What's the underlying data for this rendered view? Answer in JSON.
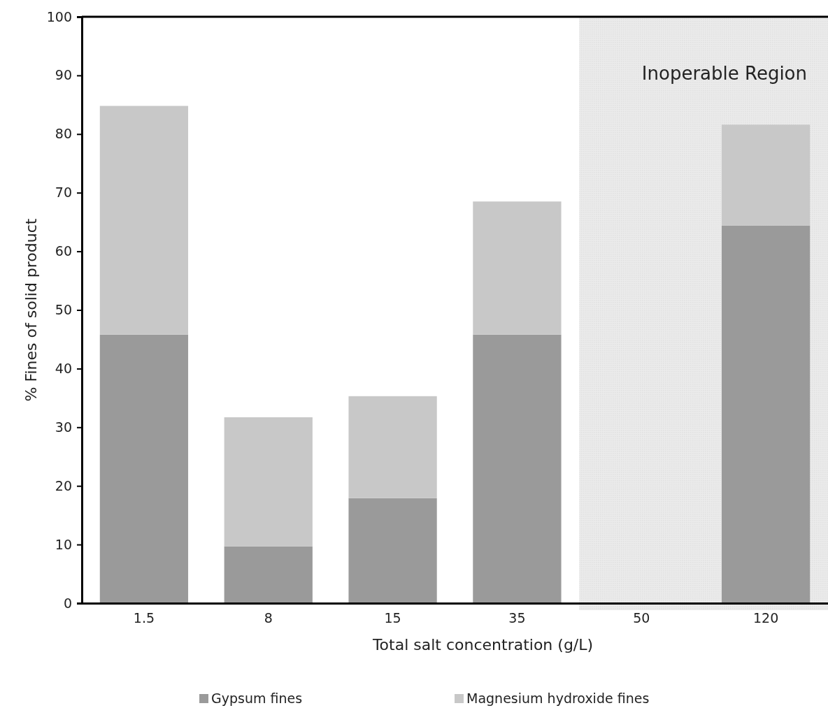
{
  "chart_data": {
    "type": "bar",
    "stacked": true,
    "xlabel": "Total salt concentration (g/L)",
    "ylabel": "% Fines of solid product",
    "categories": [
      "1.5",
      "8",
      "15",
      "35",
      "50",
      "120"
    ],
    "series": [
      {
        "name": "Gypsum fines",
        "color": "#9a9a9a",
        "values": [
          45.8,
          9.7,
          17.9,
          45.8,
          null,
          64.4
        ]
      },
      {
        "name": "Magnesium hydroxide fines",
        "color": "#c8c8c8",
        "values": [
          39.0,
          22.0,
          17.4,
          22.7,
          null,
          17.2
        ]
      }
    ],
    "ylim": [
      0,
      100
    ],
    "yticks": [
      0,
      10,
      20,
      30,
      40,
      50,
      60,
      70,
      80,
      90,
      100
    ],
    "grid": false,
    "legend": "bottom",
    "bands": [
      {
        "axis": "x",
        "from": "50",
        "to": "120",
        "label": "Inoperable Region",
        "color": "#d9d9d9"
      }
    ]
  }
}
